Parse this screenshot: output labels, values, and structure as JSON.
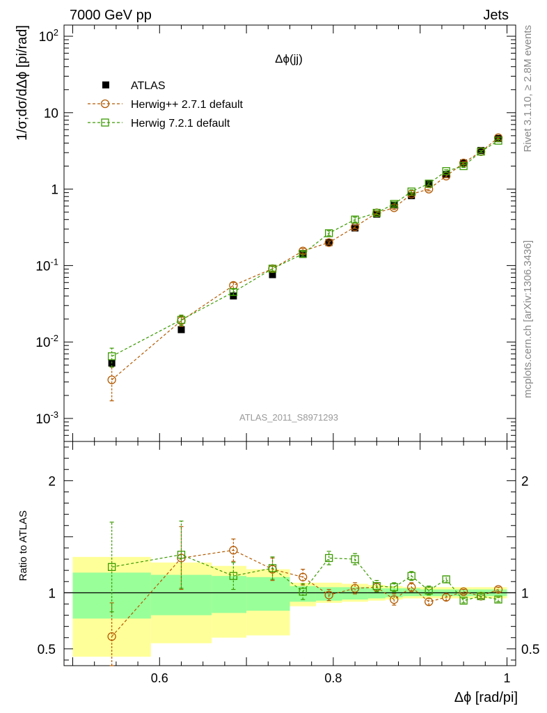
{
  "header": {
    "left": "7000 GeV pp",
    "right": "Jets"
  },
  "side_labels": {
    "rivet": "Rivet 3.1.10, ≥ 2.8M events",
    "mcplots": "mcplots.cern.ch [arXiv:1306.3436]"
  },
  "chart_data": [
    {
      "type": "scatter",
      "title": "Δϕ(jj)",
      "watermark": "ATLAS_2011_S8971293",
      "ylabel": "1/σ;dσ/dΔϕ [pi/rad]",
      "xlim": [
        0.49,
        1.01
      ],
      "ylim": [
        0.0005,
        140
      ],
      "yscale": "log",
      "yticks": [
        {
          "v": 0.001,
          "base": "10",
          "exp": "-3"
        },
        {
          "v": 0.01,
          "base": "10",
          "exp": "-2"
        },
        {
          "v": 0.1,
          "base": "10",
          "exp": "-1"
        },
        {
          "v": 1,
          "base": "1",
          "exp": ""
        },
        {
          "v": 10,
          "base": "10",
          "exp": ""
        },
        {
          "v": 100,
          "base": "10",
          "exp": "2"
        }
      ],
      "legend_position": "top-left",
      "legend": [
        {
          "label": "ATLAS",
          "marker": "filled-square",
          "color": "#000000"
        },
        {
          "label": "Herwig++ 2.7.1 default",
          "marker": "open-circle",
          "color": "#b35900"
        },
        {
          "label": "Herwig 7.2.1 default",
          "marker": "open-square",
          "color": "#3a9a00"
        }
      ],
      "series": [
        {
          "name": "ATLAS",
          "x": [
            0.545,
            0.625,
            0.685,
            0.73,
            0.765,
            0.795,
            0.825,
            0.85,
            0.87,
            0.89,
            0.91,
            0.93,
            0.95,
            0.97,
            0.99
          ],
          "y": [
            0.0053,
            0.0145,
            0.04,
            0.076,
            0.14,
            0.2,
            0.31,
            0.47,
            0.62,
            0.82,
            1.16,
            1.55,
            2.2,
            3.2,
            4.6
          ]
        },
        {
          "name": "Herwig++ 2.7.1 default",
          "x": [
            0.545,
            0.625,
            0.685,
            0.73,
            0.765,
            0.795,
            0.825,
            0.85,
            0.87,
            0.89,
            0.91,
            0.93,
            0.95,
            0.97,
            0.99
          ],
          "y": [
            0.0032,
            0.019,
            0.055,
            0.091,
            0.155,
            0.2,
            0.32,
            0.49,
            0.57,
            0.86,
            1.0,
            1.48,
            2.2,
            3.1,
            4.7
          ],
          "err_low": [
            0.0015,
            0.003,
            0.005,
            0.007,
            0.012,
            0.01,
            0.015,
            0.02,
            0.03,
            0.04,
            0.05,
            0.06,
            0.08,
            0.1,
            0.15
          ],
          "err_high": [
            0.0015,
            0.003,
            0.005,
            0.007,
            0.012,
            0.01,
            0.015,
            0.02,
            0.03,
            0.04,
            0.05,
            0.06,
            0.08,
            0.1,
            0.15
          ]
        },
        {
          "name": "Herwig 7.2.1 default",
          "x": [
            0.545,
            0.625,
            0.685,
            0.73,
            0.765,
            0.795,
            0.825,
            0.85,
            0.87,
            0.89,
            0.91,
            0.93,
            0.95,
            0.97,
            0.99
          ],
          "y": [
            0.0065,
            0.0195,
            0.045,
            0.091,
            0.142,
            0.265,
            0.4,
            0.49,
            0.64,
            0.93,
            1.18,
            1.72,
            2.0,
            3.1,
            4.3
          ],
          "err_low": [
            0.0018,
            0.003,
            0.004,
            0.006,
            0.01,
            0.02,
            0.03,
            0.03,
            0.04,
            0.05,
            0.06,
            0.07,
            0.08,
            0.1,
            0.15
          ],
          "err_high": [
            0.0018,
            0.003,
            0.004,
            0.006,
            0.01,
            0.02,
            0.03,
            0.03,
            0.04,
            0.05,
            0.06,
            0.07,
            0.08,
            0.1,
            0.15
          ]
        }
      ]
    },
    {
      "type": "scatter",
      "ylabel": "Ratio to ATLAS",
      "xlabel": "Δϕ [rad/pi]",
      "xlim": [
        0.49,
        1.01
      ],
      "ylim": [
        0.35,
        2.35
      ],
      "xticks": [
        {
          "v": 0.6,
          "label": "0.6"
        },
        {
          "v": 0.8,
          "label": "0.8"
        },
        {
          "v": 1.0,
          "label": "1"
        }
      ],
      "yticks": [
        {
          "v": 0.5,
          "label": "0.5"
        },
        {
          "v": 1,
          "label": "1"
        },
        {
          "v": 2,
          "label": "2"
        }
      ],
      "bands": [
        {
          "x0": 0.5,
          "x1": 0.59,
          "green": [
            0.77,
            1.18
          ],
          "yellow": [
            0.43,
            1.32
          ]
        },
        {
          "x0": 0.59,
          "x1": 0.66,
          "green": [
            0.8,
            1.16
          ],
          "yellow": [
            0.55,
            1.27
          ]
        },
        {
          "x0": 0.66,
          "x1": 0.7,
          "green": [
            0.82,
            1.15
          ],
          "yellow": [
            0.6,
            1.24
          ]
        },
        {
          "x0": 0.7,
          "x1": 0.75,
          "green": [
            0.84,
            1.14
          ],
          "yellow": [
            0.62,
            1.21
          ]
        },
        {
          "x0": 0.75,
          "x1": 0.78,
          "green": [
            0.92,
            1.06
          ],
          "yellow": [
            0.88,
            1.09
          ]
        },
        {
          "x0": 0.78,
          "x1": 0.81,
          "green": [
            0.93,
            1.05
          ],
          "yellow": [
            0.91,
            1.09
          ]
        },
        {
          "x0": 0.81,
          "x1": 0.84,
          "green": [
            0.94,
            1.05
          ],
          "yellow": [
            0.92,
            1.08
          ]
        },
        {
          "x0": 0.84,
          "x1": 0.86,
          "green": [
            0.95,
            1.04
          ],
          "yellow": [
            0.93,
            1.07
          ]
        },
        {
          "x0": 0.86,
          "x1": 0.88,
          "green": [
            0.96,
            1.04
          ],
          "yellow": [
            0.94,
            1.06
          ]
        },
        {
          "x0": 0.88,
          "x1": 0.9,
          "green": [
            0.97,
            1.04
          ],
          "yellow": [
            0.95,
            1.05
          ]
        },
        {
          "x0": 0.9,
          "x1": 0.96,
          "green": [
            0.97,
            1.03
          ],
          "yellow": [
            0.95,
            1.05
          ]
        },
        {
          "x0": 0.96,
          "x1": 1.0,
          "green": [
            0.97,
            1.03
          ],
          "yellow": [
            0.95,
            1.05
          ]
        }
      ],
      "series": [
        {
          "name": "Herwig++ 2.7.1 default",
          "x": [
            0.545,
            0.625,
            0.685,
            0.73,
            0.765,
            0.795,
            0.825,
            0.85,
            0.87,
            0.89,
            0.91,
            0.93,
            0.95,
            0.97,
            0.99
          ],
          "y": [
            0.61,
            1.31,
            1.38,
            1.21,
            1.14,
            0.98,
            1.04,
            1.05,
            0.94,
            1.05,
            0.92,
            0.96,
            1.01,
            0.97,
            1.03
          ],
          "err_low": [
            0.3,
            0.28,
            0.1,
            0.1,
            0.07,
            0.05,
            0.05,
            0.04,
            0.05,
            0.04,
            0.03,
            0.03,
            0.02,
            0.02,
            0.02
          ],
          "err_high": [
            0.3,
            0.28,
            0.1,
            0.1,
            0.07,
            0.05,
            0.05,
            0.04,
            0.05,
            0.04,
            0.03,
            0.03,
            0.02,
            0.02,
            0.02
          ]
        },
        {
          "name": "Herwig 7.2.1 default",
          "x": [
            0.545,
            0.625,
            0.685,
            0.73,
            0.765,
            0.795,
            0.825,
            0.85,
            0.87,
            0.89,
            0.91,
            0.93,
            0.95,
            0.97,
            0.99
          ],
          "y": [
            1.23,
            1.34,
            1.15,
            1.22,
            1.01,
            1.31,
            1.3,
            1.06,
            1.05,
            1.15,
            1.02,
            1.12,
            0.93,
            0.97,
            0.94
          ],
          "err_low": [
            0.4,
            0.3,
            0.12,
            0.1,
            0.07,
            0.06,
            0.05,
            0.05,
            0.04,
            0.04,
            0.04,
            0.03,
            0.02,
            0.02,
            0.02
          ],
          "err_high": [
            0.4,
            0.3,
            0.12,
            0.1,
            0.07,
            0.06,
            0.05,
            0.05,
            0.04,
            0.04,
            0.04,
            0.03,
            0.02,
            0.02,
            0.02
          ]
        }
      ]
    }
  ]
}
